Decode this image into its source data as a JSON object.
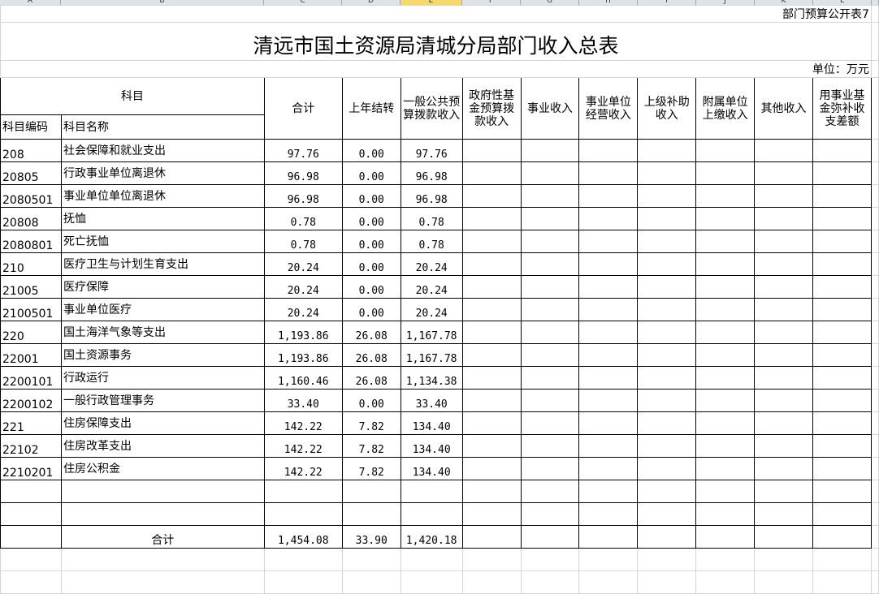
{
  "sheet": {
    "column_letters": [
      "A",
      "B",
      "C",
      "D",
      "E",
      "F",
      "G",
      "H",
      "I",
      "J",
      "K",
      "L"
    ],
    "selected_column": "E",
    "table_tag": "部门预算公开表7",
    "title": "清远市国土资源局清城分局部门收入总表",
    "unit": "单位：万元"
  },
  "header": {
    "subject": "科目",
    "subject_code": "科目编码",
    "subject_name": "科目名称",
    "columns": [
      "合计",
      "上年结转",
      "一般公共预算拨款收入",
      "政府性基金预算拨款收入",
      "事业收入",
      "事业单位经营收入",
      "上级补助收入",
      "附属单位上缴收入",
      "其他收入",
      "用事业基金弥补收支差额"
    ]
  },
  "rows": [
    {
      "code": "208",
      "name": "社会保障和就业支出",
      "total": "97.76",
      "carryover": "0.00",
      "general": "97.76"
    },
    {
      "code": "20805",
      "name": "行政事业单位离退休",
      "total": "96.98",
      "carryover": "0.00",
      "general": "96.98"
    },
    {
      "code": "2080501",
      "name": "事业单位单位离退休",
      "total": "96.98",
      "carryover": "0.00",
      "general": "96.98"
    },
    {
      "code": "20808",
      "name": "抚恤",
      "total": "0.78",
      "carryover": "0.00",
      "general": "0.78"
    },
    {
      "code": "2080801",
      "name": "死亡抚恤",
      "total": "0.78",
      "carryover": "0.00",
      "general": "0.78"
    },
    {
      "code": "210",
      "name": "医疗卫生与计划生育支出",
      "total": "20.24",
      "carryover": "0.00",
      "general": "20.24"
    },
    {
      "code": "21005",
      "name": "医疗保障",
      "total": "20.24",
      "carryover": "0.00",
      "general": "20.24"
    },
    {
      "code": "2100501",
      "name": "事业单位医疗",
      "total": "20.24",
      "carryover": "0.00",
      "general": "20.24"
    },
    {
      "code": "220",
      "name": "国土海洋气象等支出",
      "total": "1,193.86",
      "carryover": "26.08",
      "general": "1,167.78"
    },
    {
      "code": "22001",
      "name": "国土资源事务",
      "total": "1,193.86",
      "carryover": "26.08",
      "general": "1,167.78"
    },
    {
      "code": "2200101",
      "name": "行政运行",
      "total": "1,160.46",
      "carryover": "26.08",
      "general": "1,134.38"
    },
    {
      "code": "2200102",
      "name": "一般行政管理事务",
      "total": "33.40",
      "carryover": "0.00",
      "general": "33.40"
    },
    {
      "code": "221",
      "name": "住房保障支出",
      "total": "142.22",
      "carryover": "7.82",
      "general": "134.40"
    },
    {
      "code": "22102",
      "name": "住房改革支出",
      "total": "142.22",
      "carryover": "7.82",
      "general": "134.40"
    },
    {
      "code": "2210201",
      "name": "住房公积金",
      "total": "142.22",
      "carryover": "7.82",
      "general": "134.40"
    }
  ],
  "total_row": {
    "label": "合计",
    "total": "1,454.08",
    "carryover": "33.90",
    "general": "1,420.18"
  }
}
